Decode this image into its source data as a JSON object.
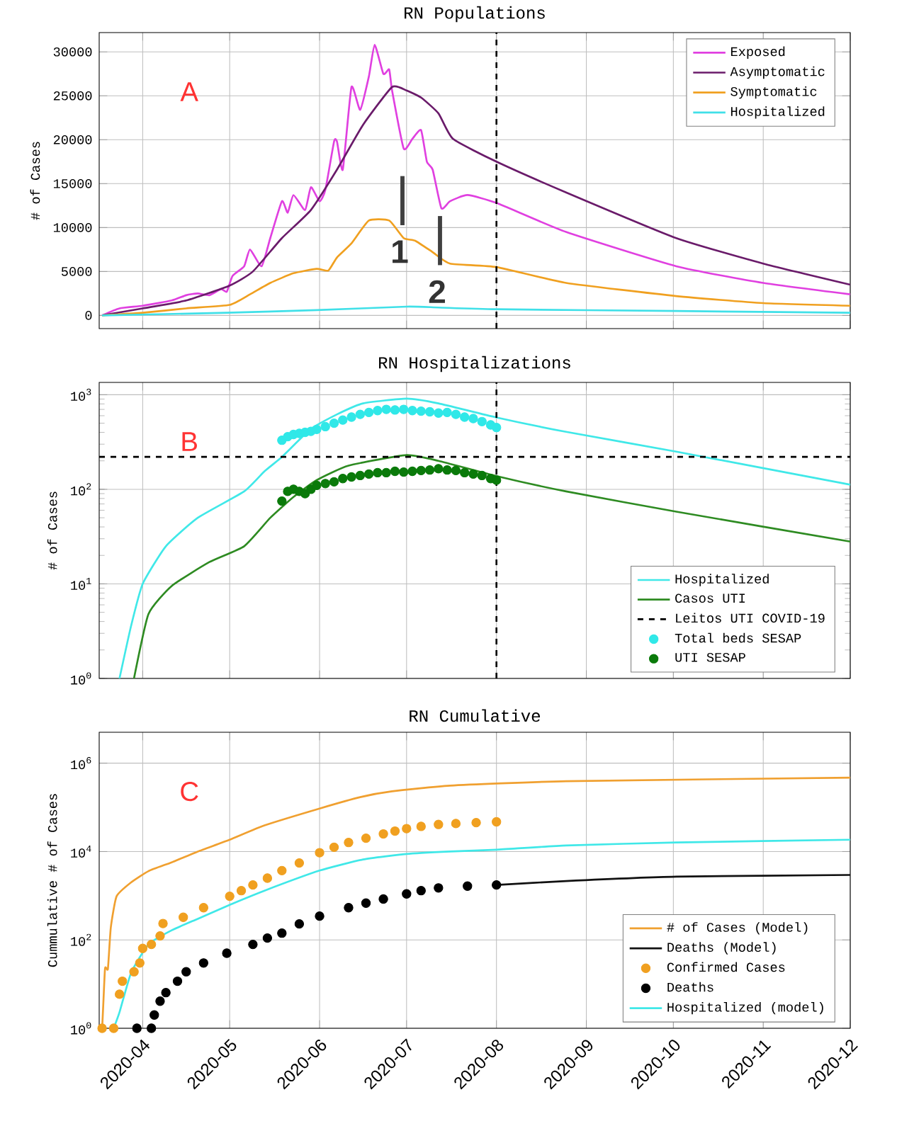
{
  "chart_data": [
    {
      "type": "line",
      "title": "RN Populations",
      "ylabel": "# of Cases",
      "xlim": [
        "2020-03-17",
        "2020-12-01"
      ],
      "xticks": [
        "2020-04",
        "2020-05",
        "2020-06",
        "2020-07",
        "2020-08",
        "2020-09",
        "2020-10",
        "2020-11",
        "2020-12"
      ],
      "ylim": [
        -1500,
        32200
      ],
      "yticks": [
        0,
        5000,
        10000,
        15000,
        20000,
        25000,
        30000
      ],
      "tick_labels": "y",
      "grid": true,
      "legend": "top right",
      "series": [
        {
          "name": "Exposed",
          "color": "#e040e0",
          "x": [
            "2020-03-18",
            "2020-03-24",
            "2020-04-01",
            "2020-04-11",
            "2020-04-16",
            "2020-04-20",
            "2020-04-24",
            "2020-04-28",
            "2020-04-30",
            "2020-05-02",
            "2020-05-06",
            "2020-05-08",
            "2020-05-12",
            "2020-05-15",
            "2020-05-19",
            "2020-05-21",
            "2020-05-23",
            "2020-05-27",
            "2020-05-29",
            "2020-06-01",
            "2020-06-03",
            "2020-06-06",
            "2020-06-07",
            "2020-06-09",
            "2020-06-12",
            "2020-06-15",
            "2020-06-18",
            "2020-06-20",
            "2020-06-23",
            "2020-06-25",
            "2020-06-26",
            "2020-06-30",
            "2020-07-03",
            "2020-07-06",
            "2020-07-08",
            "2020-07-10",
            "2020-07-13",
            "2020-07-16",
            "2020-07-22",
            "2020-08-01",
            "2020-08-25",
            "2020-10-02",
            "2020-11-01",
            "2020-12-01"
          ],
          "values": [
            0,
            800,
            1100,
            1700,
            2300,
            2500,
            2300,
            3000,
            2700,
            4500,
            5600,
            7500,
            5600,
            8800,
            13000,
            11700,
            13700,
            12000,
            14600,
            13000,
            14300,
            19800,
            19800,
            16600,
            26000,
            23400,
            27200,
            30800,
            27500,
            28000,
            25600,
            19000,
            20100,
            21100,
            17500,
            16600,
            12200,
            13000,
            13700,
            12800,
            9500,
            5600,
            3700,
            2400
          ]
        },
        {
          "name": "Asymptomatic",
          "color": "#6a1b6a",
          "x": [
            "2020-03-18",
            "2020-04-01",
            "2020-04-16",
            "2020-05-01",
            "2020-05-09",
            "2020-05-19",
            "2020-05-29",
            "2020-06-07",
            "2020-06-16",
            "2020-06-26",
            "2020-07-01",
            "2020-07-06",
            "2020-07-12",
            "2020-07-17",
            "2020-08-01",
            "2020-08-25",
            "2020-10-02",
            "2020-11-01",
            "2020-12-01"
          ],
          "values": [
            0,
            800,
            1700,
            3400,
            5000,
            8800,
            12000,
            16600,
            21700,
            26000,
            25600,
            24800,
            23000,
            20100,
            17500,
            14000,
            8800,
            5900,
            3500
          ]
        },
        {
          "name": "Symptomatic",
          "color": "#f0a020",
          "x": [
            "2020-03-18",
            "2020-04-01",
            "2020-04-16",
            "2020-05-01",
            "2020-05-08",
            "2020-05-15",
            "2020-05-23",
            "2020-05-31",
            "2020-06-04",
            "2020-06-07",
            "2020-06-12",
            "2020-06-18",
            "2020-06-25",
            "2020-06-30",
            "2020-07-04",
            "2020-07-10",
            "2020-07-16",
            "2020-08-01",
            "2020-08-25",
            "2020-10-02",
            "2020-11-01",
            "2020-12-01"
          ],
          "values": [
            0,
            300,
            800,
            1200,
            2400,
            3700,
            4800,
            5300,
            5100,
            6600,
            8200,
            10800,
            10800,
            8800,
            8500,
            7200,
            5900,
            5500,
            3700,
            2200,
            1400,
            1100
          ]
        },
        {
          "name": "Hospitalized",
          "color": "#40e0e8",
          "x": [
            "2020-03-18",
            "2020-04-30",
            "2020-05-31",
            "2020-07-01",
            "2020-07-12",
            "2020-08-01",
            "2020-10-02",
            "2020-12-01"
          ],
          "values": [
            0,
            300,
            600,
            1000,
            900,
            700,
            500,
            300
          ]
        }
      ],
      "ref_lines": [
        {
          "axis": "x",
          "value": "2020-08-01",
          "color": "#000000",
          "line_style": "dashed"
        }
      ],
      "annotations": [
        "A",
        "1",
        "2"
      ]
    },
    {
      "type": "line",
      "title": "RN Hospitalizations",
      "ylabel": "# of Cases",
      "xlim": [
        "2020-03-17",
        "2020-12-01"
      ],
      "xticks": [
        "2020-04",
        "2020-05",
        "2020-06",
        "2020-07",
        "2020-08",
        "2020-09",
        "2020-10",
        "2020-11",
        "2020-12"
      ],
      "ylim": [
        1,
        1350
      ],
      "log": "y",
      "yticks": [
        {
          "value": 1,
          "label": "10$^{0}$"
        },
        {
          "value": 10,
          "label": "10$^{1}$"
        },
        {
          "value": 100,
          "label": "10$^{2}$"
        },
        {
          "value": 1000,
          "label": "10$^{3}$"
        }
      ],
      "tick_labels": "y",
      "grid": true,
      "legend": "bottom right",
      "series": [
        {
          "name": "Hospitalized",
          "color": "#40e8e8",
          "x": [
            "2020-03-24",
            "2020-03-28",
            "2020-04-01",
            "2020-04-09",
            "2020-04-20",
            "2020-05-06",
            "2020-05-13",
            "2020-05-19",
            "2020-05-29",
            "2020-06-07",
            "2020-06-16",
            "2020-07-01",
            "2020-07-12",
            "2020-08-01",
            "2020-08-25",
            "2020-10-02",
            "2020-12-01"
          ],
          "values": [
            1,
            3.6,
            10,
            25,
            50,
            95,
            155,
            220,
            435,
            620,
            810,
            910,
            810,
            575,
            405,
            250,
            112
          ]
        },
        {
          "name": "Casos UTI",
          "color": "#2e8b22",
          "x": [
            "2020-03-29",
            "2020-04-03",
            "2020-04-11",
            "2020-04-24",
            "2020-05-06",
            "2020-05-15",
            "2020-05-23",
            "2020-05-31",
            "2020-06-11",
            "2020-07-01",
            "2020-07-12",
            "2020-08-01",
            "2020-08-25",
            "2020-10-02",
            "2020-12-01"
          ],
          "values": [
            1,
            4.8,
            9.5,
            17,
            25,
            50,
            83,
            125,
            178,
            230,
            200,
            138,
            95,
            58,
            28
          ]
        },
        {
          "name": "Total beds SESAP",
          "type": "scatter",
          "color": "#30e8e8",
          "x": [
            "2020-05-19",
            "2020-05-21",
            "2020-05-23",
            "2020-05-25",
            "2020-05-27",
            "2020-05-29",
            "2020-05-31",
            "2020-06-03",
            "2020-06-06",
            "2020-06-09",
            "2020-06-12",
            "2020-06-15",
            "2020-06-18",
            "2020-06-21",
            "2020-06-24",
            "2020-06-27",
            "2020-06-30",
            "2020-07-03",
            "2020-07-06",
            "2020-07-09",
            "2020-07-12",
            "2020-07-15",
            "2020-07-18",
            "2020-07-21",
            "2020-07-24",
            "2020-07-27",
            "2020-07-30",
            "2020-08-01"
          ],
          "values": [
            330,
            360,
            380,
            390,
            400,
            410,
            430,
            460,
            500,
            540,
            580,
            620,
            650,
            680,
            700,
            690,
            700,
            680,
            670,
            660,
            640,
            650,
            620,
            580,
            560,
            520,
            480,
            450
          ]
        },
        {
          "name": "UTI SESAP",
          "type": "scatter",
          "color": "#0a7a0a",
          "x": [
            "2020-05-19",
            "2020-05-21",
            "2020-05-23",
            "2020-05-25",
            "2020-05-27",
            "2020-05-29",
            "2020-05-31",
            "2020-06-03",
            "2020-06-06",
            "2020-06-09",
            "2020-06-12",
            "2020-06-15",
            "2020-06-18",
            "2020-06-21",
            "2020-06-24",
            "2020-06-27",
            "2020-06-30",
            "2020-07-03",
            "2020-07-06",
            "2020-07-09",
            "2020-07-12",
            "2020-07-15",
            "2020-07-18",
            "2020-07-21",
            "2020-07-24",
            "2020-07-27",
            "2020-07-30",
            "2020-08-01"
          ],
          "values": [
            75,
            95,
            100,
            95,
            90,
            100,
            110,
            115,
            120,
            130,
            135,
            140,
            145,
            150,
            150,
            155,
            152,
            155,
            158,
            160,
            165,
            160,
            158,
            150,
            145,
            140,
            130,
            125
          ]
        }
      ],
      "ref_lines": [
        {
          "axis": "x",
          "value": "2020-08-01",
          "color": "#000000",
          "line_style": "dashed"
        },
        {
          "axis": "y",
          "value": 220,
          "label": "Leitos UTI COVID-19",
          "color": "#000000",
          "line_style": "dashed"
        }
      ],
      "annotations": [
        "B"
      ]
    },
    {
      "type": "line",
      "title": "RN Cumulative",
      "ylabel": "Cummulative # of Cases",
      "xlim": [
        "2020-03-17",
        "2020-12-01"
      ],
      "xticks": [
        "2020-04",
        "2020-05",
        "2020-06",
        "2020-07",
        "2020-08",
        "2020-09",
        "2020-10",
        "2020-11",
        "2020-12"
      ],
      "ylim": [
        1,
        5000000
      ],
      "log": "y",
      "yticks": [
        {
          "value": 1,
          "label": "10$^{0}$"
        },
        {
          "value": 100,
          "label": "10$^{2}$"
        },
        {
          "value": 10000,
          "label": "10$^{4}$"
        },
        {
          "value": 1000000,
          "label": "10$^{6}$"
        }
      ],
      "grid": true,
      "legend": "bottom right",
      "series": [
        {
          "name": "# of Cases (Model)",
          "color": "#f0a030",
          "x": [
            "2020-03-17",
            "2020-03-18",
            "2020-03-19",
            "2020-03-20",
            "2020-03-21",
            "2020-03-23",
            "2020-03-28",
            "2020-04-03",
            "2020-04-11",
            "2020-04-20",
            "2020-05-01",
            "2020-05-13",
            "2020-06-01",
            "2020-06-15",
            "2020-06-26",
            "2020-07-16",
            "2020-08-25",
            "2020-12-01"
          ],
          "values": [
            1,
            1,
            22,
            22,
            190,
            970,
            2000,
            3600,
            5700,
            10000,
            18500,
            39000,
            94000,
            170000,
            230000,
            310000,
            390000,
            470000
          ]
        },
        {
          "name": "Deaths (Model)",
          "color": "#111111",
          "x": [
            "2020-08-01",
            "2020-08-25",
            "2020-10-02",
            "2020-12-01"
          ],
          "values": [
            1750,
            2150,
            2700,
            2950
          ]
        },
        {
          "name": "Confirmed Cases",
          "type": "scatter",
          "color": "#f0a020",
          "x": [
            "2020-03-18",
            "2020-03-22",
            "2020-03-24",
            "2020-03-25",
            "2020-03-29",
            "2020-03-31",
            "2020-04-01",
            "2020-04-04",
            "2020-04-07",
            "2020-04-08",
            "2020-04-15",
            "2020-04-22",
            "2020-05-01",
            "2020-05-05",
            "2020-05-09",
            "2020-05-14",
            "2020-05-19",
            "2020-05-25",
            "2020-06-01",
            "2020-06-06",
            "2020-06-11",
            "2020-06-17",
            "2020-06-23",
            "2020-06-27",
            "2020-07-01",
            "2020-07-06",
            "2020-07-12",
            "2020-07-18",
            "2020-07-25",
            "2020-08-01"
          ],
          "values": [
            1,
            1,
            5.9,
            11.6,
            19,
            30,
            64,
            79,
            123,
            235,
            325,
            535,
            970,
            1300,
            1750,
            2500,
            3700,
            5500,
            9400,
            12500,
            16000,
            20000,
            25000,
            29000,
            33000,
            37000,
            41000,
            43000,
            45000,
            47000
          ]
        },
        {
          "name": "Deaths",
          "type": "scatter",
          "color": "#000000",
          "x": [
            "2020-03-30",
            "2020-04-04",
            "2020-04-05",
            "2020-04-07",
            "2020-04-09",
            "2020-04-13",
            "2020-04-16",
            "2020-04-22",
            "2020-04-30",
            "2020-05-09",
            "2020-05-14",
            "2020-05-19",
            "2020-05-25",
            "2020-06-01",
            "2020-06-11",
            "2020-06-17",
            "2020-06-23",
            "2020-07-01",
            "2020-07-06",
            "2020-07-12",
            "2020-07-22",
            "2020-08-01"
          ],
          "values": [
            1,
            1,
            2,
            4.1,
            6.4,
            11.6,
            19,
            30,
            50,
            79,
            110,
            142,
            230,
            345,
            535,
            680,
            840,
            1100,
            1300,
            1500,
            1650,
            1750
          ]
        },
        {
          "name": "Hospitalized (model)",
          "color": "#40e8e8",
          "x": [
            "2020-03-22",
            "2020-03-24",
            "2020-03-28",
            "2020-04-03",
            "2020-04-11",
            "2020-04-20",
            "2020-05-01",
            "2020-05-13",
            "2020-06-01",
            "2020-06-16",
            "2020-07-01",
            "2020-07-16",
            "2020-08-01",
            "2020-08-25",
            "2020-10-02",
            "2020-12-01"
          ],
          "values": [
            1,
            2.3,
            18,
            79,
            165,
            300,
            620,
            1300,
            3700,
            6600,
            8800,
            10000,
            11000,
            13700,
            16000,
            18500
          ]
        }
      ],
      "annotations": [
        "C"
      ]
    }
  ]
}
